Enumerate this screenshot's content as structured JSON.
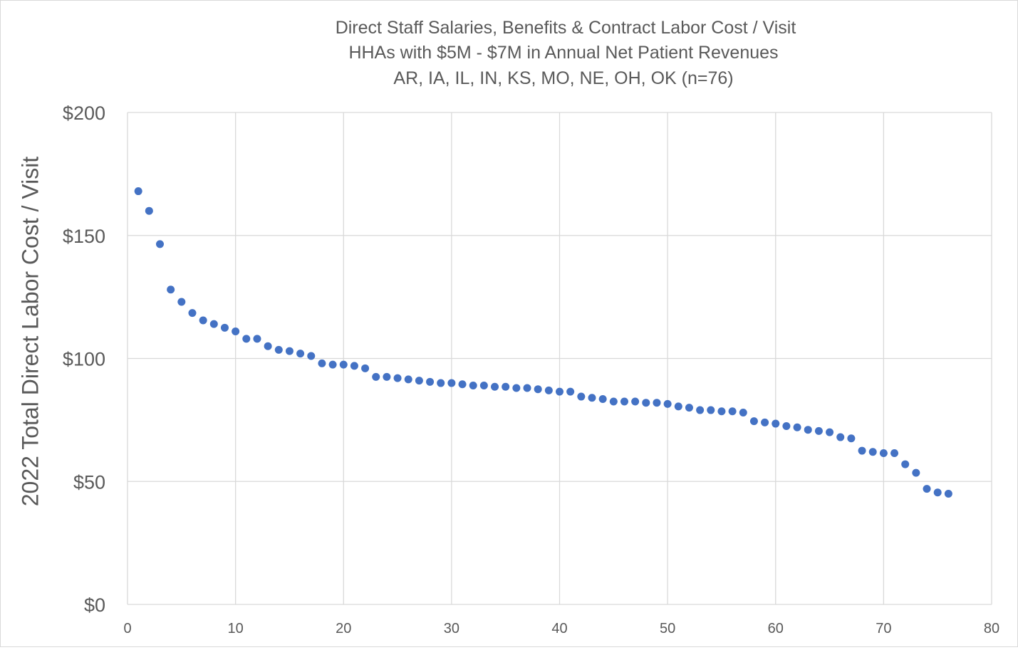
{
  "chart_data": {
    "type": "scatter",
    "title": [
      "Direct Staff Salaries, Benefits & Contract Labor Cost / Visit",
      "HHAs with $5M - $7M in Annual Net Patient Revenues",
      "AR, IA, IL, IN, KS, MO, NE, OH, OK (n=76)"
    ],
    "xlabel": "",
    "ylabel": "2022 Total Direct Labor Cost / Visit",
    "xlim": [
      0,
      80
    ],
    "ylim": [
      0,
      200
    ],
    "x_ticks": [
      0,
      10,
      20,
      30,
      40,
      50,
      60,
      70,
      80
    ],
    "x_tick_labels": [
      "0",
      "10",
      "20",
      "30",
      "40",
      "50",
      "60",
      "70",
      "80"
    ],
    "y_ticks": [
      0,
      50,
      100,
      150,
      200
    ],
    "y_tick_labels": [
      "$0",
      "$50",
      "$100",
      "$150",
      "$200"
    ],
    "grid": true,
    "marker_color": "#4472c4",
    "series": [
      {
        "x": [
          1,
          2,
          3,
          4,
          5,
          6,
          7,
          8,
          9,
          10,
          11,
          12,
          13,
          14,
          15,
          16,
          17,
          18,
          19,
          20,
          21,
          22,
          23,
          24,
          25,
          26,
          27,
          28,
          29,
          30,
          31,
          32,
          33,
          34,
          35,
          36,
          37,
          38,
          39,
          40,
          41,
          42,
          43,
          44,
          45,
          46,
          47,
          48,
          49,
          50,
          51,
          52,
          53,
          54,
          55,
          56,
          57,
          58,
          59,
          60,
          61,
          62,
          63,
          64,
          65,
          66,
          67,
          68,
          69,
          70,
          71,
          72,
          73,
          74,
          75,
          76
        ],
        "y": [
          168,
          160,
          146.5,
          128,
          123,
          118.5,
          115.5,
          114,
          112.5,
          111,
          108,
          108,
          105,
          103.5,
          103,
          102,
          101,
          98,
          97.5,
          97.5,
          97,
          96,
          92.5,
          92.5,
          92,
          91.5,
          91,
          90.5,
          90,
          90,
          89.5,
          89,
          89,
          88.5,
          88.5,
          88,
          88,
          87.5,
          87,
          86.5,
          86.5,
          84.5,
          84,
          83.5,
          82.5,
          82.5,
          82.5,
          82,
          82,
          81.5,
          80.5,
          80,
          79,
          79,
          78.5,
          78.5,
          78,
          74.5,
          74,
          73.5,
          72.5,
          72,
          71,
          70.5,
          70,
          68,
          67.5,
          62.5,
          62,
          61.5,
          61.5,
          57,
          53.5,
          47,
          45.5,
          45
        ]
      }
    ]
  }
}
